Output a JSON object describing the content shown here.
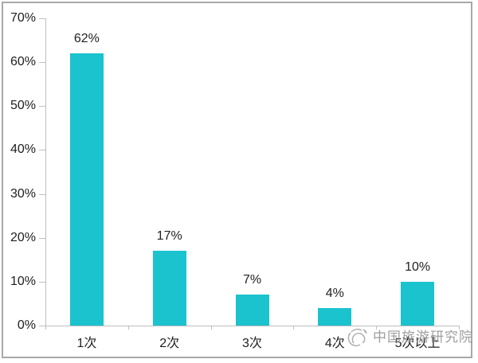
{
  "chart_data": {
    "type": "bar",
    "categories": [
      "1次",
      "2次",
      "3次",
      "4次",
      "5次以上"
    ],
    "values": [
      62,
      17,
      7,
      4,
      10
    ],
    "value_labels": [
      "62%",
      "17%",
      "7%",
      "4%",
      "10%"
    ],
    "y_ticks": [
      "0%",
      "10%",
      "20%",
      "30%",
      "40%",
      "50%",
      "60%",
      "70%"
    ],
    "ylim": [
      0,
      70
    ],
    "grid": false,
    "legend": null,
    "title": "",
    "xlabel": "",
    "ylabel": "",
    "bar_color": "#1ac3ce",
    "axis_color": "#bfbfbf",
    "text_color": "#212121"
  },
  "watermark": {
    "text": "中国旅游研究院",
    "color": "#969696",
    "logo_icon": "china-tourism-academy-logo"
  },
  "frame": {
    "border_color": "#a8a8a8",
    "background": "#ffffff"
  }
}
